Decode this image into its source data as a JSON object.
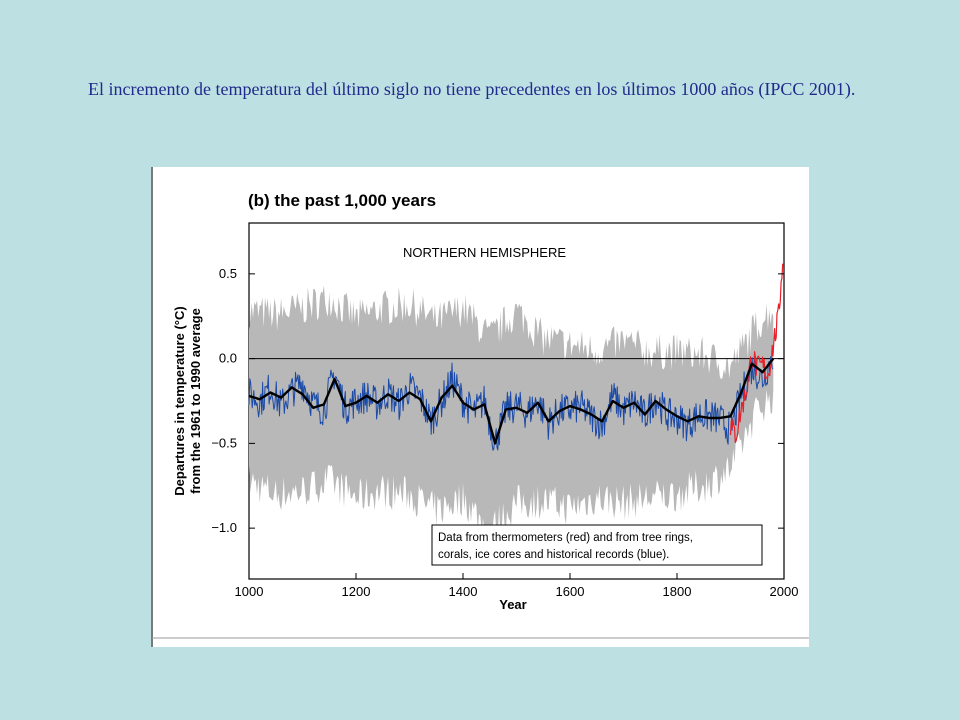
{
  "slide": {
    "caption": "El incremento de temperatura del último siglo no tiene precedentes en los últimos 1000 años (IPCC 2001)."
  },
  "colors": {
    "background": "#bde0e3",
    "caption_text": "#1f2a8c",
    "uncertainty_band": "#b8b8b8",
    "tree_ring_series": "#1b4aa6",
    "thermometer_series": "#e8202a",
    "smoothed_series": "#000000"
  },
  "chart_data": {
    "type": "line",
    "title": "(b) the past 1,000 years",
    "subtitle": "NORTHERN HEMISPHERE",
    "xlabel": "Year",
    "ylabel_lines": [
      "Departures in temperature (°C)",
      "from the 1961 to 1990 average"
    ],
    "xlim": [
      1000,
      2000
    ],
    "ylim": [
      -1.3,
      0.8
    ],
    "xticks": [
      1000,
      1200,
      1400,
      1600,
      1800,
      2000
    ],
    "yticks": [
      0.5,
      0.0,
      -0.5,
      -1.0
    ],
    "ytick_labels": [
      "0.5",
      "0.0",
      "−0.5",
      "−1.0"
    ],
    "zero_line": true,
    "grid": false,
    "legend": {
      "placement": "bottom-right",
      "lines": [
        "Data from thermometers (red) and from tree rings,",
        "corals, ice cores and historical records (blue)."
      ]
    },
    "uncertainty_band": {
      "x": [
        1000,
        1050,
        1100,
        1150,
        1200,
        1250,
        1300,
        1350,
        1400,
        1450,
        1500,
        1550,
        1600,
        1650,
        1700,
        1750,
        1800,
        1850,
        1900,
        1950,
        1980
      ],
      "upper": [
        0.28,
        0.26,
        0.3,
        0.36,
        0.24,
        0.3,
        0.32,
        0.22,
        0.3,
        0.12,
        0.28,
        0.12,
        0.08,
        0.05,
        0.1,
        0.04,
        0.04,
        0.02,
        -0.05,
        0.2,
        0.3
      ],
      "lower": [
        -0.72,
        -0.8,
        -0.78,
        -0.72,
        -0.82,
        -0.78,
        -0.8,
        -0.9,
        -0.82,
        -1.02,
        -0.85,
        -0.84,
        -0.88,
        -0.82,
        -0.85,
        -0.82,
        -0.8,
        -0.75,
        -0.65,
        -0.3,
        -0.22
      ]
    },
    "series": [
      {
        "name": "tree rings, corals, ice cores and historical records",
        "color": "#1b4aa6",
        "x": [
          1000,
          1020,
          1040,
          1060,
          1080,
          1100,
          1120,
          1140,
          1160,
          1180,
          1200,
          1220,
          1240,
          1260,
          1280,
          1300,
          1320,
          1340,
          1360,
          1380,
          1400,
          1420,
          1440,
          1460,
          1480,
          1500,
          1520,
          1540,
          1560,
          1580,
          1600,
          1620,
          1640,
          1660,
          1680,
          1700,
          1720,
          1740,
          1760,
          1780,
          1800,
          1820,
          1840,
          1860,
          1880,
          1900,
          1920,
          1940,
          1960,
          1980
        ],
        "y": [
          -0.21,
          -0.25,
          -0.17,
          -0.28,
          -0.19,
          -0.14,
          -0.27,
          -0.3,
          -0.08,
          -0.29,
          -0.25,
          -0.22,
          -0.27,
          -0.2,
          -0.27,
          -0.17,
          -0.23,
          -0.37,
          -0.25,
          -0.12,
          -0.25,
          -0.32,
          -0.25,
          -0.5,
          -0.3,
          -0.28,
          -0.32,
          -0.25,
          -0.38,
          -0.31,
          -0.3,
          -0.28,
          -0.34,
          -0.39,
          -0.22,
          -0.31,
          -0.25,
          -0.34,
          -0.23,
          -0.33,
          -0.35,
          -0.39,
          -0.33,
          -0.34,
          -0.36,
          -0.42,
          -0.22,
          -0.05,
          -0.12,
          0.02
        ]
      },
      {
        "name": "thermometers",
        "color": "#e8202a",
        "x": [
          1900,
          1910,
          1920,
          1930,
          1940,
          1950,
          1960,
          1970,
          1980,
          1990,
          1998
        ],
        "y": [
          -0.4,
          -0.45,
          -0.3,
          -0.18,
          0.02,
          -0.06,
          -0.04,
          -0.1,
          0.08,
          0.25,
          0.62
        ]
      },
      {
        "name": "smoothed",
        "color": "#000000",
        "x": [
          1000,
          1020,
          1040,
          1060,
          1080,
          1100,
          1120,
          1140,
          1160,
          1180,
          1200,
          1220,
          1240,
          1260,
          1280,
          1300,
          1320,
          1340,
          1360,
          1380,
          1400,
          1420,
          1440,
          1460,
          1480,
          1500,
          1520,
          1540,
          1560,
          1580,
          1600,
          1620,
          1640,
          1660,
          1680,
          1700,
          1720,
          1740,
          1760,
          1780,
          1800,
          1820,
          1840,
          1860,
          1880,
          1900,
          1920,
          1940,
          1960,
          1980
        ],
        "y": [
          -0.22,
          -0.24,
          -0.2,
          -0.23,
          -0.17,
          -0.21,
          -0.29,
          -0.27,
          -0.12,
          -0.28,
          -0.26,
          -0.22,
          -0.26,
          -0.21,
          -0.25,
          -0.2,
          -0.24,
          -0.37,
          -0.23,
          -0.16,
          -0.26,
          -0.3,
          -0.27,
          -0.5,
          -0.3,
          -0.29,
          -0.32,
          -0.26,
          -0.37,
          -0.31,
          -0.28,
          -0.3,
          -0.33,
          -0.37,
          -0.25,
          -0.29,
          -0.26,
          -0.33,
          -0.25,
          -0.3,
          -0.34,
          -0.37,
          -0.34,
          -0.35,
          -0.35,
          -0.34,
          -0.2,
          -0.03,
          -0.08,
          0.0
        ]
      }
    ]
  }
}
